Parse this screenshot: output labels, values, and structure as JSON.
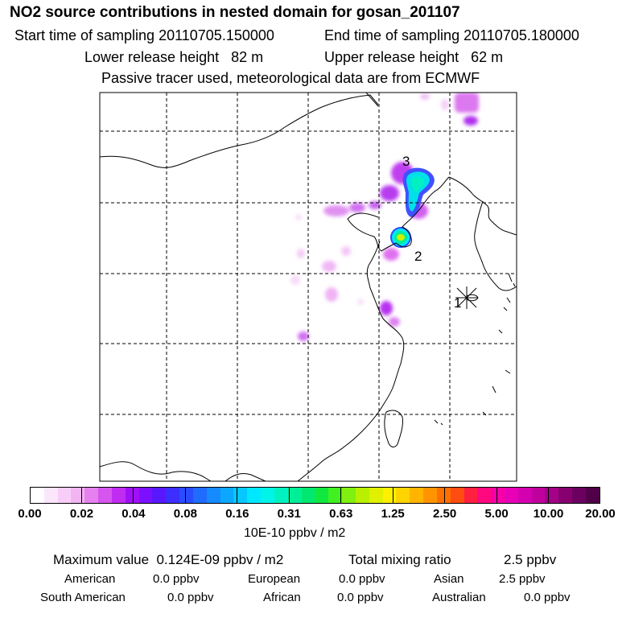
{
  "header": {
    "title": "NO2 source contributions in nested domain for gosan_201107",
    "start": "Start time of sampling 20110705.150000",
    "end": "End time of sampling 20110705.180000",
    "lower": "Lower release height   82 m",
    "upper": "Upper release height   62 m",
    "tracer": "Passive tracer used, meteorological data are from ECMWF"
  },
  "map": {
    "labels": {
      "label_1": "1",
      "label_2": "2",
      "label_3": "3"
    }
  },
  "colorbar": {
    "ticks": [
      "0.00",
      "0.02",
      "0.04",
      "0.08",
      "0.16",
      "0.31",
      "0.63",
      "1.25",
      "2.50",
      "5.00",
      "10.00",
      "20.00"
    ],
    "colors": [
      "#ffffff",
      "#fce6fc",
      "#f8cef8",
      "#f3b4f4",
      "#e680ee",
      "#d655ee",
      "#c02cf0",
      "#a010f6",
      "#7a10ff",
      "#5818ff",
      "#3c2eff",
      "#2a4cff",
      "#1f6cff",
      "#168aff",
      "#0ca8ff",
      "#06c8ff",
      "#00e8ff",
      "#00f4e8",
      "#00f2c0",
      "#00ee98",
      "#00e870",
      "#10e840",
      "#40f020",
      "#80f010",
      "#b8f000",
      "#e0f000",
      "#fff000",
      "#ffd400",
      "#ffb400",
      "#ff9400",
      "#ff7000",
      "#ff4c10",
      "#ff2040",
      "#ff0880",
      "#f800a8",
      "#e800b8",
      "#d400b0",
      "#c0009c",
      "#a40088",
      "#880070",
      "#6c0060",
      "#500048"
    ],
    "units": "10E-10 ppbv / m2"
  },
  "summary": {
    "max": "Maximum value  0.124E-09 ppbv / m2",
    "total_label": "Total mixing ratio",
    "total_value": "2.5 ppbv",
    "sources": [
      {
        "name": "American",
        "value": "0.0 ppbv"
      },
      {
        "name": "European",
        "value": "0.0 ppbv"
      },
      {
        "name": "Asian",
        "value": "2.5 ppbv"
      },
      {
        "name": "South American",
        "value": "0.0 ppbv"
      },
      {
        "name": "African",
        "value": "0.0 ppbv"
      },
      {
        "name": "Australian",
        "value": "0.0 ppbv"
      }
    ]
  }
}
